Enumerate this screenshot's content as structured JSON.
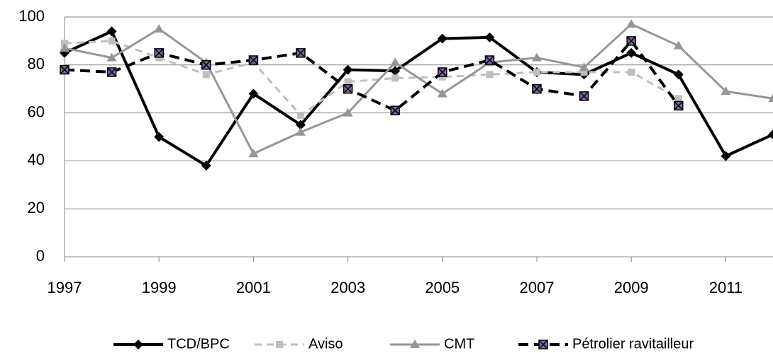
{
  "chart_data": {
    "type": "line",
    "x": [
      1997,
      1998,
      1999,
      2000,
      2001,
      2002,
      2003,
      2004,
      2005,
      2006,
      2007,
      2008,
      2009,
      2010,
      2011,
      2012
    ],
    "series": [
      {
        "name": "TCD/BPC",
        "color": "#000000",
        "values": [
          85,
          94,
          50,
          38,
          68,
          55,
          78,
          77.5,
          91,
          91.5,
          77,
          76,
          85,
          76,
          42,
          51
        ]
      },
      {
        "name": "Aviso",
        "color": "#bfbfbf",
        "values": [
          89,
          90,
          83,
          76,
          81,
          59,
          73,
          74.5,
          75,
          76,
          77,
          77,
          77,
          66,
          null,
          null
        ]
      },
      {
        "name": "CMT",
        "color": "#969696",
        "values": [
          87,
          83,
          95,
          81,
          43,
          52,
          60,
          81,
          68,
          81,
          83,
          79,
          97,
          88,
          69,
          66
        ]
      },
      {
        "name": "Pétrolier ravitailleur",
        "color": "#000000",
        "values": [
          78,
          77,
          85,
          80,
          82,
          85,
          70,
          61,
          77,
          82,
          70,
          67,
          90,
          63,
          null,
          null
        ]
      }
    ],
    "xlim": [
      1997,
      2012
    ],
    "xticks": [
      1997,
      1999,
      2001,
      2003,
      2005,
      2007,
      2009,
      2011
    ],
    "ylim": [
      0,
      100
    ],
    "yticks": [
      0,
      20,
      40,
      60,
      80,
      100
    ],
    "grid": true,
    "legend": "bottom"
  }
}
